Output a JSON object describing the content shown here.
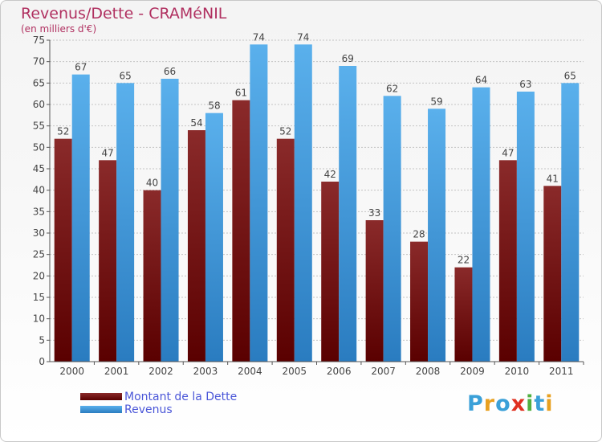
{
  "header": {
    "title": "Revenus/Dette - CRAMéNIL",
    "subtitle": "(en milliers d'€)"
  },
  "legend": {
    "items": [
      {
        "label": "Montant de la Dette",
        "color": "#7a1a1a"
      },
      {
        "label": "Revenus",
        "color": "#4aa4e4"
      }
    ]
  },
  "logo": {
    "letters": [
      {
        "ch": "P",
        "color": "#3aa0d8"
      },
      {
        "ch": "r",
        "color": "#e8a020"
      },
      {
        "ch": "o",
        "color": "#3aa0d8"
      },
      {
        "ch": "x",
        "color": "#e03020"
      },
      {
        "ch": "i",
        "color": "#50b040"
      },
      {
        "ch": "t",
        "color": "#3aa0d8"
      },
      {
        "ch": "i",
        "color": "#e8a020"
      }
    ]
  },
  "chart_data": {
    "type": "bar",
    "title": "Revenus/Dette - CRAMéNIL",
    "subtitle": "(en milliers d'€)",
    "categories": [
      "2000",
      "2001",
      "2002",
      "2003",
      "2004",
      "2005",
      "2006",
      "2007",
      "2008",
      "2009",
      "2010",
      "2011"
    ],
    "series": [
      {
        "name": "Montant de la Dette",
        "values": [
          52,
          47,
          40,
          54,
          61,
          52,
          42,
          33,
          28,
          22,
          47,
          41
        ],
        "color": "#7a1a1a"
      },
      {
        "name": "Revenus",
        "values": [
          67,
          65,
          66,
          58,
          74,
          74,
          69,
          62,
          59,
          64,
          63,
          65
        ],
        "color": "#4aa4e4"
      }
    ],
    "ylim": [
      0,
      75
    ],
    "yticks": [
      0,
      5,
      10,
      15,
      20,
      25,
      30,
      35,
      40,
      45,
      50,
      55,
      60,
      65,
      70,
      75
    ],
    "grid": true,
    "legend_position": "bottom-left"
  }
}
